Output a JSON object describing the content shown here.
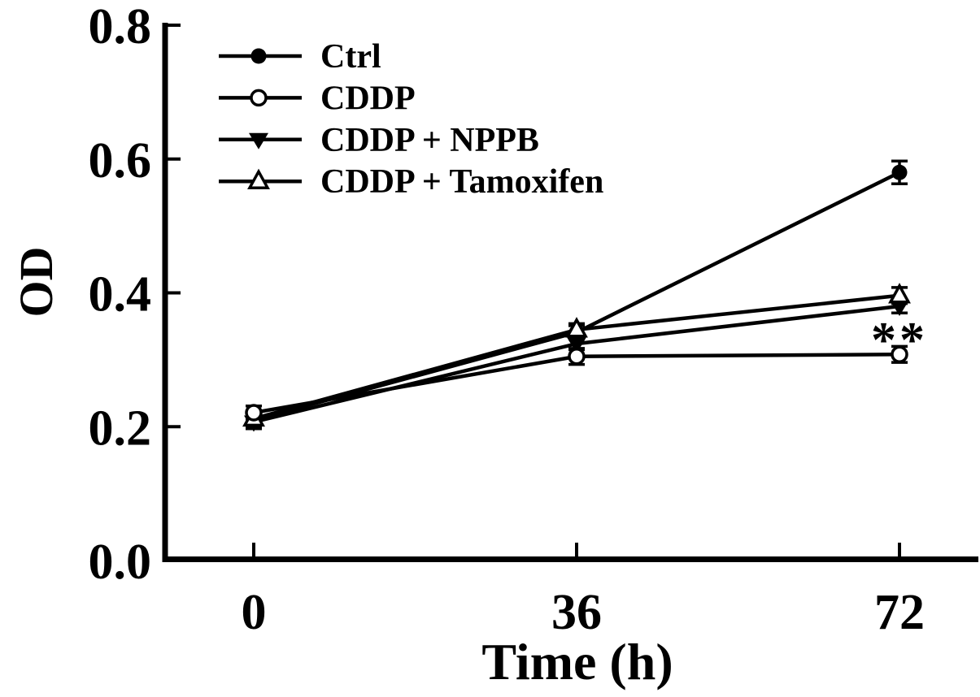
{
  "figure": {
    "background": "#ffffff",
    "foreground": "#000000"
  },
  "chart_data": {
    "type": "line",
    "title": "",
    "xlabel": "Time (h)",
    "ylabel": "OD",
    "x": [
      0,
      36,
      72
    ],
    "xticks": [
      0,
      36,
      72
    ],
    "yticks": [
      0.0,
      0.2,
      0.4,
      0.6,
      0.8
    ],
    "xlim": [
      0,
      72
    ],
    "ylim": [
      0,
      0.8
    ],
    "grid": false,
    "legend_position": "upper-left",
    "series": [
      {
        "name": "Ctrl",
        "marker": "filled-circle",
        "values": [
          0.21,
          0.341,
          0.58
        ],
        "errors": [
          0.01,
          0.01,
          0.017
        ]
      },
      {
        "name": "CDDP",
        "marker": "open-circle",
        "values": [
          0.221,
          0.305,
          0.308
        ],
        "errors": [
          0.01,
          0.012,
          0.012
        ]
      },
      {
        "name": "CDDP + NPPB",
        "marker": "filled-triangle-down",
        "values": [
          0.207,
          0.324,
          0.38
        ],
        "errors": [
          0.01,
          0.009,
          0.01
        ]
      },
      {
        "name": "CDDP + Tamoxifen",
        "marker": "open-triangle-up",
        "values": [
          0.212,
          0.345,
          0.396
        ],
        "errors": [
          0.01,
          0.009,
          0.012
        ]
      }
    ],
    "annotations": [
      {
        "text": "**",
        "x": 72,
        "y": 0.34
      }
    ]
  }
}
